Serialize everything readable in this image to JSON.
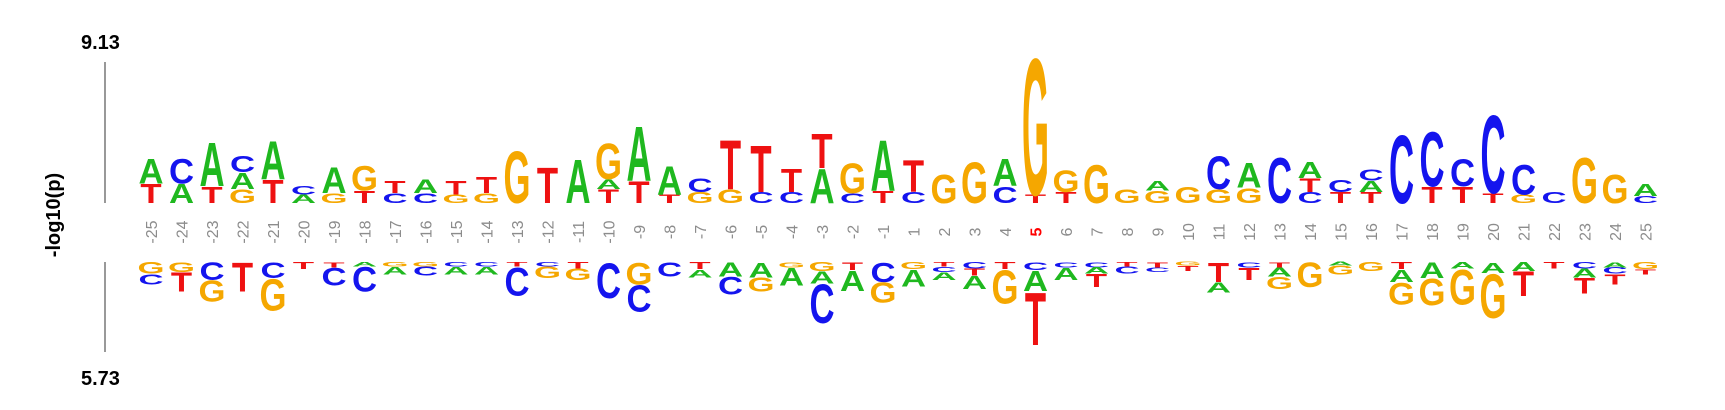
{
  "chart_data": {
    "type": "sequence-logo",
    "ylabel": "-log10(p)",
    "y_top_label": "9.13",
    "y_bottom_label": "5.73",
    "highlight_position": "5",
    "colors": {
      "A": "#1fb81f",
      "C": "#1414ee",
      "G": "#f5a700",
      "T": "#ee1111"
    },
    "positions": [
      {
        "pos": "-25",
        "up": [
          [
            "T",
            0.14
          ],
          [
            "A",
            0.18
          ]
        ],
        "down": [
          [
            "G",
            0.13
          ],
          [
            "C",
            0.12
          ]
        ]
      },
      {
        "pos": "-24",
        "up": [
          [
            "A",
            0.14
          ],
          [
            "C",
            0.18
          ]
        ],
        "down": [
          [
            "G",
            0.11
          ],
          [
            "T",
            0.22
          ]
        ]
      },
      {
        "pos": "-23",
        "up": [
          [
            "T",
            0.12
          ],
          [
            "A",
            0.32
          ]
        ],
        "down": [
          [
            "C",
            0.2
          ],
          [
            "G",
            0.24
          ]
        ]
      },
      {
        "pos": "-22",
        "up": [
          [
            "G",
            0.1
          ],
          [
            "A",
            0.12
          ],
          [
            "C",
            0.12
          ]
        ],
        "down": [
          [
            "T",
            0.33
          ]
        ]
      },
      {
        "pos": "-21",
        "up": [
          [
            "T",
            0.17
          ],
          [
            "A",
            0.28
          ]
        ],
        "down": [
          [
            "C",
            0.18
          ],
          [
            "G",
            0.36
          ]
        ]
      },
      {
        "pos": "-20",
        "up": [
          [
            "A",
            0.06
          ],
          [
            "C",
            0.06
          ]
        ],
        "down": [
          [
            "T",
            0.08
          ]
        ]
      },
      {
        "pos": "-19",
        "up": [
          [
            "G",
            0.07
          ],
          [
            "A",
            0.19
          ]
        ],
        "down": [
          [
            "T",
            0.06
          ],
          [
            "C",
            0.2
          ]
        ]
      },
      {
        "pos": "-18",
        "up": [
          [
            "T",
            0.09
          ],
          [
            "G",
            0.18
          ]
        ],
        "down": [
          [
            "A",
            0.05
          ],
          [
            "C",
            0.28
          ]
        ]
      },
      {
        "pos": "-17",
        "up": [
          [
            "C",
            0.07
          ],
          [
            "T",
            0.09
          ]
        ],
        "down": [
          [
            "G",
            0.05
          ],
          [
            "A",
            0.09
          ]
        ]
      },
      {
        "pos": "-16",
        "up": [
          [
            "C",
            0.07
          ],
          [
            "A",
            0.1
          ]
        ],
        "down": [
          [
            "G",
            0.05
          ],
          [
            "C",
            0.1
          ]
        ]
      },
      {
        "pos": "-15",
        "up": [
          [
            "G",
            0.06
          ],
          [
            "T",
            0.1
          ]
        ],
        "down": [
          [
            "C",
            0.05
          ],
          [
            "A",
            0.09
          ]
        ]
      },
      {
        "pos": "-14",
        "up": [
          [
            "G",
            0.07
          ],
          [
            "T",
            0.12
          ]
        ],
        "down": [
          [
            "C",
            0.05
          ],
          [
            "A",
            0.09
          ]
        ]
      },
      {
        "pos": "-13",
        "up": [
          [
            "G",
            0.38
          ]
        ],
        "down": [
          [
            "T",
            0.05
          ],
          [
            "C",
            0.32
          ]
        ]
      },
      {
        "pos": "-12",
        "up": [
          [
            "T",
            0.26
          ]
        ],
        "down": [
          [
            "C",
            0.05
          ],
          [
            "G",
            0.13
          ]
        ]
      },
      {
        "pos": "-11",
        "up": [
          [
            "A",
            0.32
          ]
        ],
        "down": [
          [
            "T",
            0.07
          ],
          [
            "G",
            0.13
          ]
        ]
      },
      {
        "pos": "-10",
        "up": [
          [
            "T",
            0.1
          ],
          [
            "A",
            0.07
          ],
          [
            "G",
            0.26
          ]
        ],
        "down": [
          [
            "C",
            0.4
          ]
        ]
      },
      {
        "pos": "-9",
        "up": [
          [
            "T",
            0.16
          ],
          [
            "A",
            0.4
          ]
        ],
        "down": [
          [
            "G",
            0.25
          ],
          [
            "C",
            0.3
          ]
        ]
      },
      {
        "pos": "-8",
        "up": [
          [
            "T",
            0.06
          ],
          [
            "A",
            0.21
          ]
        ],
        "down": [
          [
            "C",
            0.16
          ]
        ]
      },
      {
        "pos": "-7",
        "up": [
          [
            "G",
            0.08
          ],
          [
            "C",
            0.1
          ]
        ],
        "down": [
          [
            "T",
            0.08
          ],
          [
            "A",
            0.09
          ]
        ]
      },
      {
        "pos": "-6",
        "up": [
          [
            "G",
            0.1
          ],
          [
            "T",
            0.36
          ]
        ],
        "down": [
          [
            "A",
            0.16
          ],
          [
            "C",
            0.2
          ]
        ]
      },
      {
        "pos": "-5",
        "up": [
          [
            "C",
            0.08
          ],
          [
            "T",
            0.34
          ]
        ],
        "down": [
          [
            "A",
            0.17
          ],
          [
            "G",
            0.16
          ]
        ]
      },
      {
        "pos": "-4",
        "up": [
          [
            "C",
            0.08
          ],
          [
            "T",
            0.17
          ]
        ],
        "down": [
          [
            "G",
            0.06
          ],
          [
            "A",
            0.2
          ]
        ]
      },
      {
        "pos": "-3",
        "up": [
          [
            "A",
            0.25
          ],
          [
            "T",
            0.25
          ]
        ],
        "down": [
          [
            "G",
            0.1
          ],
          [
            "A",
            0.14
          ],
          [
            "C",
            0.44
          ]
        ]
      },
      {
        "pos": "-2",
        "up": [
          [
            "C",
            0.07
          ],
          [
            "G",
            0.22
          ]
        ],
        "down": [
          [
            "T",
            0.09
          ],
          [
            "A",
            0.23
          ]
        ]
      },
      {
        "pos": "-1",
        "up": [
          [
            "T",
            0.09
          ],
          [
            "A",
            0.37
          ]
        ],
        "down": [
          [
            "C",
            0.22
          ],
          [
            "G",
            0.23
          ]
        ]
      },
      {
        "pos": "1",
        "up": [
          [
            "C",
            0.08
          ],
          [
            "T",
            0.23
          ]
        ],
        "down": [
          [
            "G",
            0.08
          ],
          [
            "A",
            0.19
          ]
        ]
      },
      {
        "pos": "2",
        "up": [
          [
            "G",
            0.21
          ]
        ],
        "down": [
          [
            "T",
            0.05
          ],
          [
            "C",
            0.06
          ],
          [
            "A",
            0.09
          ]
        ]
      },
      {
        "pos": "3",
        "up": [
          [
            "G",
            0.3
          ]
        ],
        "down": [
          [
            "C",
            0.07
          ],
          [
            "T",
            0.08
          ],
          [
            "A",
            0.15
          ]
        ]
      },
      {
        "pos": "4",
        "up": [
          [
            "C",
            0.12
          ],
          [
            "A",
            0.2
          ]
        ],
        "down": [
          [
            "T",
            0.08
          ],
          [
            "G",
            0.38
          ]
        ]
      },
      {
        "pos": "5",
        "up": [
          [
            "T",
            0.06
          ],
          [
            "G",
            1.0
          ]
        ],
        "down": [
          [
            "C",
            0.09
          ],
          [
            "A",
            0.23
          ],
          [
            "T",
            0.6
          ]
        ]
      },
      {
        "pos": "6",
        "up": [
          [
            "T",
            0.08
          ],
          [
            "G",
            0.16
          ]
        ],
        "down": [
          [
            "C",
            0.06
          ],
          [
            "A",
            0.14
          ]
        ]
      },
      {
        "pos": "7",
        "up": [
          [
            "G",
            0.28
          ]
        ],
        "down": [
          [
            "C",
            0.06
          ],
          [
            "A",
            0.07
          ],
          [
            "T",
            0.15
          ]
        ]
      },
      {
        "pos": "8",
        "up": [
          [
            "G",
            0.1
          ]
        ],
        "down": [
          [
            "T",
            0.05
          ],
          [
            "C",
            0.08
          ]
        ]
      },
      {
        "pos": "9",
        "up": [
          [
            "G",
            0.09
          ],
          [
            "A",
            0.07
          ]
        ],
        "down": [
          [
            "T",
            0.06
          ],
          [
            "C",
            0.05
          ]
        ]
      },
      {
        "pos": "10",
        "up": [
          [
            "G",
            0.12
          ]
        ],
        "down": [
          [
            "G",
            0.04
          ],
          [
            "T",
            0.06
          ]
        ]
      },
      {
        "pos": "11",
        "up": [
          [
            "G",
            0.1
          ],
          [
            "C",
            0.24
          ]
        ],
        "down": [
          [
            "T",
            0.22
          ],
          [
            "A",
            0.12
          ]
        ]
      },
      {
        "pos": "12",
        "up": [
          [
            "G",
            0.11
          ],
          [
            "A",
            0.18
          ]
        ],
        "down": [
          [
            "C",
            0.06
          ],
          [
            "T",
            0.14
          ]
        ]
      },
      {
        "pos": "13",
        "up": [
          [
            "C",
            0.33
          ]
        ],
        "down": [
          [
            "T",
            0.06
          ],
          [
            "A",
            0.1
          ],
          [
            "G",
            0.14
          ]
        ]
      },
      {
        "pos": "14",
        "up": [
          [
            "C",
            0.08
          ],
          [
            "T",
            0.1
          ],
          [
            "A",
            0.12
          ]
        ],
        "down": [
          [
            "G",
            0.28
          ]
        ]
      },
      {
        "pos": "15",
        "up": [
          [
            "T",
            0.08
          ],
          [
            "C",
            0.09
          ]
        ],
        "down": [
          [
            "A",
            0.04
          ],
          [
            "G",
            0.1
          ]
        ]
      },
      {
        "pos": "16",
        "up": [
          [
            "T",
            0.08
          ],
          [
            "A",
            0.08
          ],
          [
            "C",
            0.08
          ]
        ],
        "down": [
          [
            "G",
            0.1
          ]
        ]
      },
      {
        "pos": "17",
        "up": [
          [
            "C",
            0.5
          ]
        ],
        "down": [
          [
            "T",
            0.08
          ],
          [
            "A",
            0.14
          ],
          [
            "G",
            0.25
          ]
        ]
      },
      {
        "pos": "18",
        "up": [
          [
            "T",
            0.12
          ],
          [
            "C",
            0.4
          ]
        ],
        "down": [
          [
            "A",
            0.18
          ],
          [
            "G",
            0.3
          ]
        ]
      },
      {
        "pos": "19",
        "up": [
          [
            "T",
            0.12
          ],
          [
            "C",
            0.2
          ]
        ],
        "down": [
          [
            "A",
            0.07
          ],
          [
            "G",
            0.4
          ]
        ]
      },
      {
        "pos": "20",
        "up": [
          [
            "T",
            0.07
          ],
          [
            "C",
            0.57
          ]
        ],
        "down": [
          [
            "A",
            0.12
          ],
          [
            "G",
            0.5
          ]
        ]
      },
      {
        "pos": "21",
        "up": [
          [
            "G",
            0.06
          ],
          [
            "C",
            0.22
          ]
        ],
        "down": [
          [
            "A",
            0.1
          ],
          [
            "T",
            0.28
          ]
        ]
      },
      {
        "pos": "22",
        "up": [
          [
            "C",
            0.08
          ]
        ],
        "down": [
          [
            "T",
            0.07
          ]
        ]
      },
      {
        "pos": "23",
        "up": [
          [
            "G",
            0.33
          ]
        ],
        "down": [
          [
            "C",
            0.07
          ],
          [
            "A",
            0.1
          ],
          [
            "T",
            0.18
          ]
        ]
      },
      {
        "pos": "24",
        "up": [
          [
            "G",
            0.21
          ]
        ],
        "down": [
          [
            "A",
            0.06
          ],
          [
            "C",
            0.07
          ],
          [
            "T",
            0.12
          ]
        ]
      },
      {
        "pos": "25",
        "up": [
          [
            "C",
            0.05
          ],
          [
            "A",
            0.09
          ]
        ],
        "down": [
          [
            "G",
            0.08
          ],
          [
            "T",
            0.06
          ]
        ]
      }
    ]
  }
}
